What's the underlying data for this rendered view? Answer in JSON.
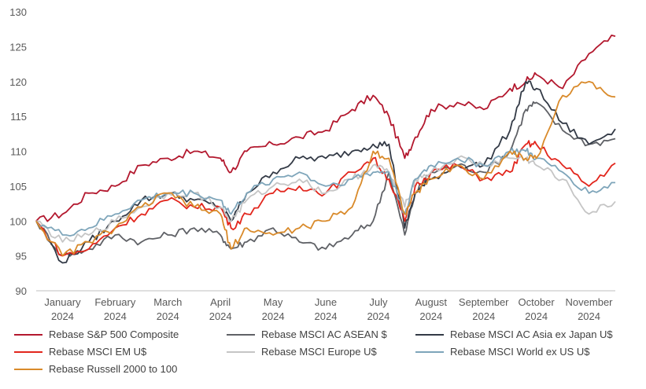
{
  "chart_data": {
    "type": "line",
    "title": "",
    "xlabel": "",
    "ylabel": "",
    "ylim": [
      90,
      130
    ],
    "yticks": [
      90,
      95,
      100,
      105,
      110,
      115,
      120,
      125,
      130
    ],
    "x_range": [
      0,
      11
    ],
    "x_ticks": [
      {
        "line1": "January",
        "line2": "2024",
        "pos": 0.5
      },
      {
        "line1": "February",
        "line2": "2024",
        "pos": 1.5
      },
      {
        "line1": "March",
        "line2": "2024",
        "pos": 2.5
      },
      {
        "line1": "April",
        "line2": "2024",
        "pos": 3.5
      },
      {
        "line1": "May",
        "line2": "2024",
        "pos": 4.5
      },
      {
        "line1": "June",
        "line2": "2024",
        "pos": 5.5
      },
      {
        "line1": "July",
        "line2": "2024",
        "pos": 6.5
      },
      {
        "line1": "August",
        "line2": "2024",
        "pos": 7.5
      },
      {
        "line1": "September",
        "line2": "2024",
        "pos": 8.5
      },
      {
        "line1": "October",
        "line2": "2024",
        "pos": 9.5
      },
      {
        "line1": "November",
        "line2": "2024",
        "pos": 10.5
      }
    ],
    "x": [
      0,
      0.5,
      1,
      1.5,
      2,
      2.5,
      3,
      3.5,
      3.7,
      4,
      4.5,
      5,
      5.5,
      6,
      6.4,
      6.7,
      7,
      7.2,
      7.5,
      8,
      8.5,
      9,
      9.3,
      9.5,
      10,
      10.5,
      11
    ],
    "series": [
      {
        "name": "Rebase S&P 500 Composite",
        "color": "#b3182e",
        "values": [
          100,
          101,
          104,
          105,
          108,
          109,
          110,
          109,
          107,
          110,
          111,
          112,
          113,
          116,
          118,
          115,
          109,
          112,
          116,
          117,
          116,
          119,
          120,
          121,
          119,
          124,
          126.5
        ]
      },
      {
        "name": "Rebase MSCI AC ASEAN $",
        "color": "#5f6166",
        "values": [
          100,
          95,
          96,
          98,
          97,
          98,
          99,
          98,
          96,
          97,
          99,
          97,
          96,
          98,
          100,
          107,
          98,
          104,
          107,
          108,
          107,
          110,
          116,
          117,
          113,
          111,
          111.8
        ]
      },
      {
        "name": "Rebase MSCI AC Asia ex Japan U$",
        "color": "#333a46",
        "values": [
          100,
          94,
          97,
          100,
          103,
          104,
          103,
          102,
          100,
          104,
          107,
          109,
          109,
          110,
          111,
          111,
          99,
          104,
          106,
          108,
          108,
          113,
          120,
          119,
          114,
          111,
          113.2
        ]
      },
      {
        "name": "Rebase MSCI EM U$",
        "color": "#e2261d",
        "values": [
          100,
          95,
          96,
          99,
          101,
          103,
          102,
          102,
          99,
          101,
          104,
          105,
          104,
          107,
          109,
          106,
          100,
          105,
          107,
          108,
          106,
          107,
          111,
          111,
          108,
          105,
          108.3
        ]
      },
      {
        "name": "Rebase MSCI Europe U$",
        "color": "#c5c5c5",
        "values": [
          100,
          97,
          98,
          100,
          102,
          104,
          104,
          102,
          100,
          103,
          105,
          106,
          104,
          106,
          108,
          107,
          102,
          106,
          107,
          109,
          108,
          109,
          109,
          108,
          106,
          101,
          102.8
        ]
      },
      {
        "name": "Rebase MSCI World ex US U$",
        "color": "#7ea5ba",
        "values": [
          100,
          98,
          99,
          101,
          103,
          104,
          104,
          103,
          101,
          104,
          106,
          107,
          105,
          106,
          107,
          107,
          101,
          106,
          108,
          109,
          108,
          110,
          110,
          109,
          107,
          104,
          105.5
        ]
      },
      {
        "name": "Rebase Russell 2000 to 100",
        "color": "#d98a2a",
        "values": [
          100,
          95,
          97,
          99,
          102,
          104,
          102,
          101,
          96,
          99,
          98,
          99,
          100,
          102,
          110,
          109,
          101,
          104,
          106,
          108,
          106,
          110,
          109,
          109,
          118,
          120,
          117.8
        ]
      }
    ],
    "legend": [
      "Rebase S&P 500 Composite",
      "Rebase MSCI AC ASEAN $",
      "Rebase MSCI AC Asia ex Japan U$",
      "Rebase MSCI EM U$",
      "Rebase MSCI Europe U$",
      "Rebase MSCI World ex US U$",
      "Rebase Russell 2000 to 100"
    ]
  }
}
